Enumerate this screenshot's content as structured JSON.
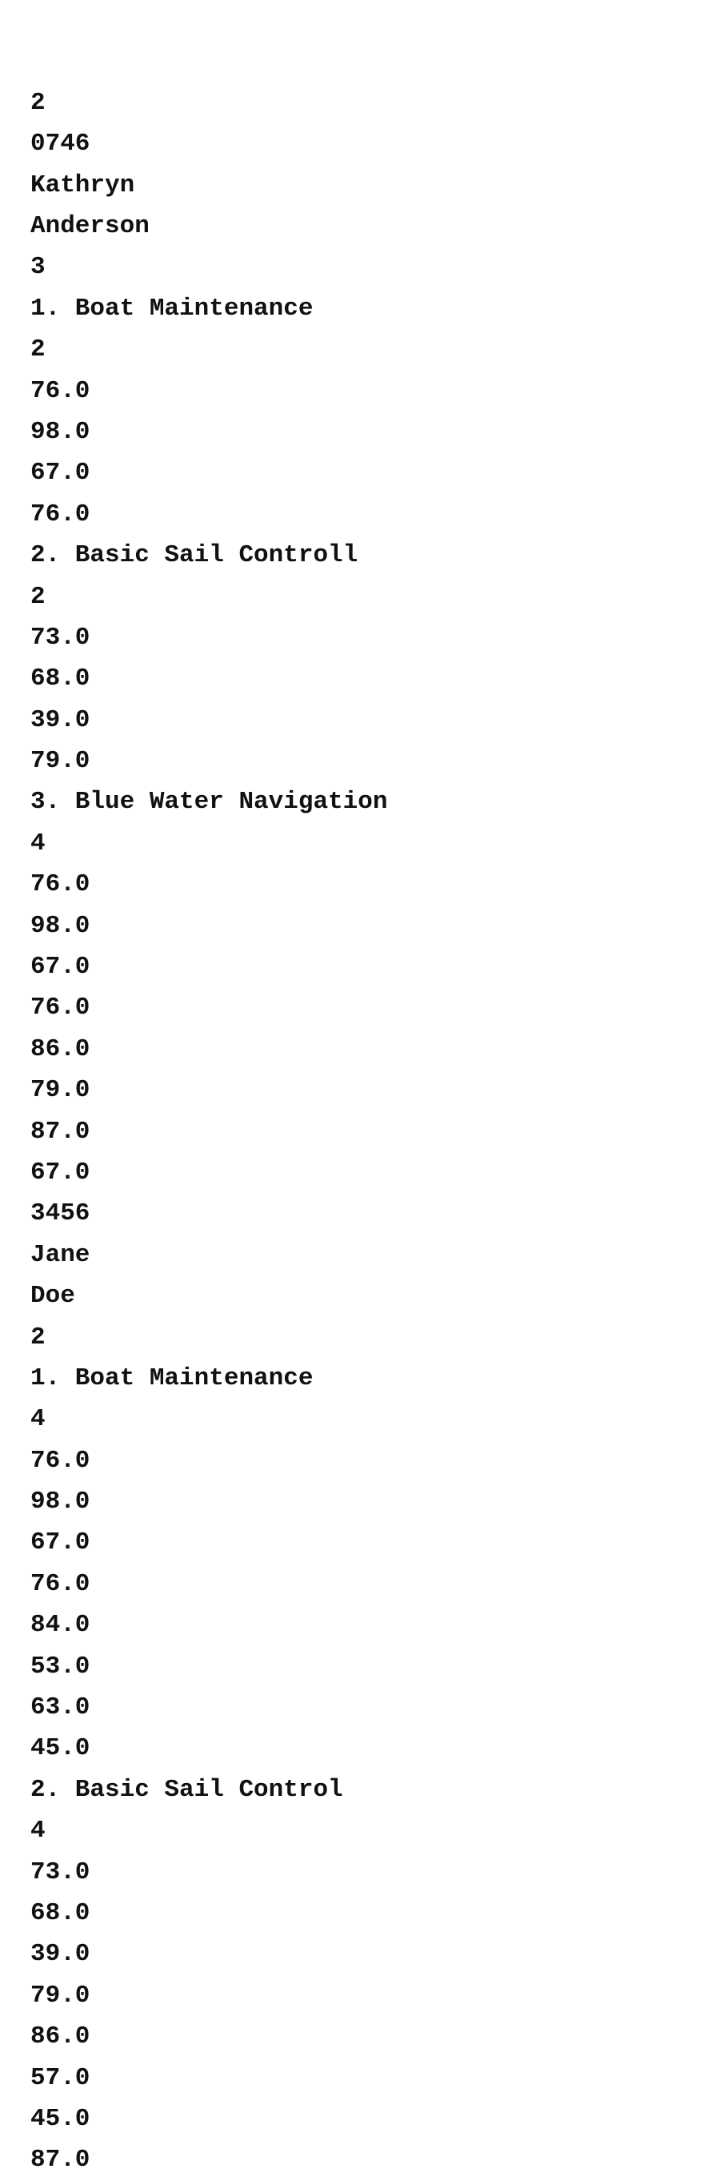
{
  "document": {
    "type": "plain-text-file",
    "text_color": "#111111",
    "background_color": "#ffffff",
    "lines": [
      "2",
      "0746",
      "Kathryn",
      "Anderson",
      "3",
      "1. Boat Maintenance",
      "2",
      "76.0",
      "98.0",
      "67.0",
      "76.0",
      "2. Basic Sail Controll",
      "2",
      "73.0",
      "68.0",
      "39.0",
      "79.0",
      "3. Blue Water Navigation",
      "4",
      "76.0",
      "98.0",
      "67.0",
      "76.0",
      "86.0",
      "79.0",
      "87.0",
      "67.0",
      "3456",
      "Jane",
      "Doe",
      "2",
      "1. Boat Maintenance",
      "4",
      "76.0",
      "98.0",
      "67.0",
      "76.0",
      "84.0",
      "53.0",
      "63.0",
      "45.0",
      "2. Basic Sail Control",
      "4",
      "73.0",
      "68.0",
      "39.0",
      "79.0",
      "86.0",
      "57.0",
      "45.0",
      "87.0"
    ]
  }
}
